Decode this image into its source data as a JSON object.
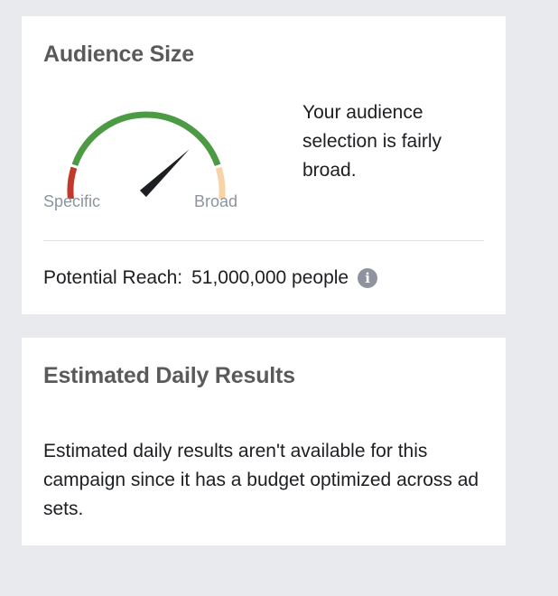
{
  "audience_size": {
    "title": "Audience Size",
    "gauge": {
      "specific_label": "Specific",
      "broad_label": "Broad",
      "level": 0.72,
      "colors": {
        "specific": "#c0392b",
        "fair": "#4d9a45",
        "broad": "#f7d4a8",
        "needle": "#1c1e21"
      }
    },
    "description": "Your audience selection is fairly broad.",
    "reach_label": "Potential Reach:",
    "reach_value": "51,000,000 people",
    "info_icon": "info-circle-icon"
  },
  "estimated_daily_results": {
    "title": "Estimated Daily Results",
    "description": "Estimated daily results aren't available for this campaign since it has a budget optimized across ad sets."
  }
}
